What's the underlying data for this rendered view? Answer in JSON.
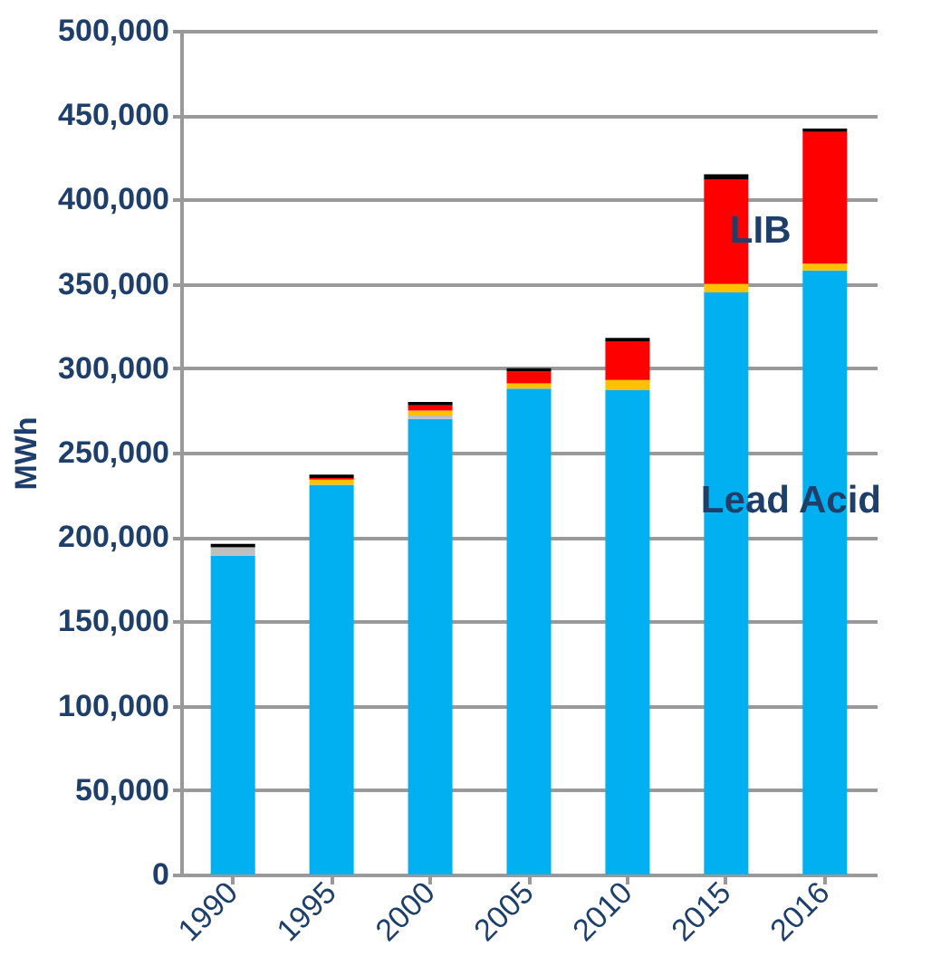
{
  "chart_data": {
    "type": "bar",
    "stacked": true,
    "ylabel": "MWh",
    "categories": [
      "1990",
      "1995",
      "2000",
      "2005",
      "2010",
      "2015",
      "2016"
    ],
    "series": [
      {
        "name": "Lead Acid",
        "color": "#00b0f0",
        "values": [
          189000,
          231000,
          270000,
          288000,
          287000,
          345000,
          358000
        ]
      },
      {
        "color": "#bfbfbf",
        "values": [
          5000,
          0,
          2000,
          0,
          0,
          0,
          0
        ]
      },
      {
        "color": "#ffc000",
        "values": [
          0,
          3000,
          3000,
          3000,
          6000,
          5000,
          4000
        ]
      },
      {
        "name": "LIB",
        "color": "#ff0000",
        "values": [
          0,
          1000,
          3000,
          7000,
          23000,
          62000,
          78000
        ]
      },
      {
        "color": "#000000",
        "values": [
          2000,
          2000,
          2000,
          2000,
          2000,
          3000,
          2000
        ]
      }
    ],
    "ylim": [
      0,
      500000
    ],
    "yticks": [
      0,
      {
        "value": 50000,
        "label": "50,000"
      },
      {
        "value": 100000,
        "label": "100,000"
      },
      {
        "value": 150000,
        "label": "150,000"
      },
      {
        "value": 200000,
        "label": "200,000"
      },
      {
        "value": 250000,
        "label": "250,000"
      },
      {
        "value": 300000,
        "label": "300,000"
      },
      {
        "value": 350000,
        "label": "350,000"
      },
      {
        "value": 400000,
        "label": "400,000"
      },
      {
        "value": 450000,
        "label": "450,000"
      },
      {
        "value": 500000,
        "label": "500,000"
      }
    ],
    "grid": "y"
  }
}
